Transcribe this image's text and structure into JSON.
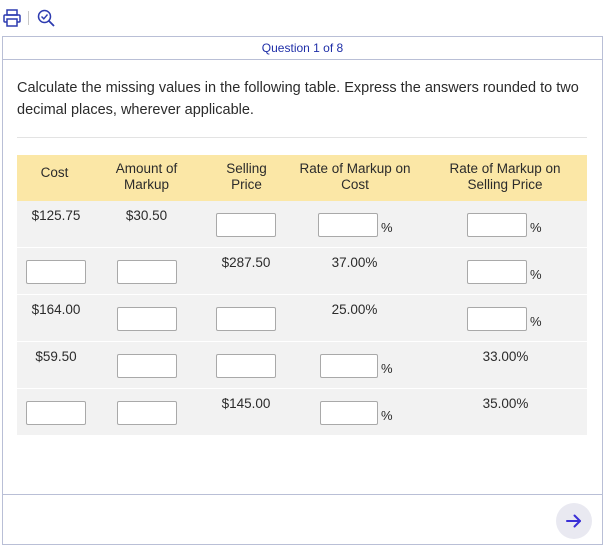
{
  "toolbar": {
    "print_icon": "printer-icon",
    "search_icon": "search-check-icon"
  },
  "question": {
    "header": "Question 1 of 8",
    "instructions": "Calculate the missing values in the following table. Express the answers rounded to two decimal places, wherever applicable."
  },
  "table": {
    "headers": {
      "cost": "Cost",
      "markup_amount": "Amount of Markup",
      "selling_price": "Selling Price",
      "rate_cost": "Rate of Markup on Cost",
      "rate_selling": "Rate of Markup on Selling Price"
    },
    "percent_sign": "%",
    "rows": [
      {
        "cost": "$125.75",
        "markup_amount": "$30.50",
        "selling_price": "",
        "rate_cost": "",
        "rate_selling": ""
      },
      {
        "cost": "",
        "markup_amount": "",
        "selling_price": "$287.50",
        "rate_cost": "37.00%",
        "rate_selling": ""
      },
      {
        "cost": "$164.00",
        "markup_amount": "",
        "selling_price": "",
        "rate_cost": "25.00%",
        "rate_selling": ""
      },
      {
        "cost": "$59.50",
        "markup_amount": "",
        "selling_price": "",
        "rate_cost": "",
        "rate_selling": "33.00%"
      },
      {
        "cost": "",
        "markup_amount": "",
        "selling_price": "$145.00",
        "rate_cost": "",
        "rate_selling": "35.00%"
      }
    ]
  },
  "navigation": {
    "next_icon": "arrow-right-icon"
  },
  "colors": {
    "header_bg": "#fbe7a6",
    "row_bg": "#f2f2f2",
    "accent": "#1f2fa8",
    "border": "#b9bfd6"
  }
}
